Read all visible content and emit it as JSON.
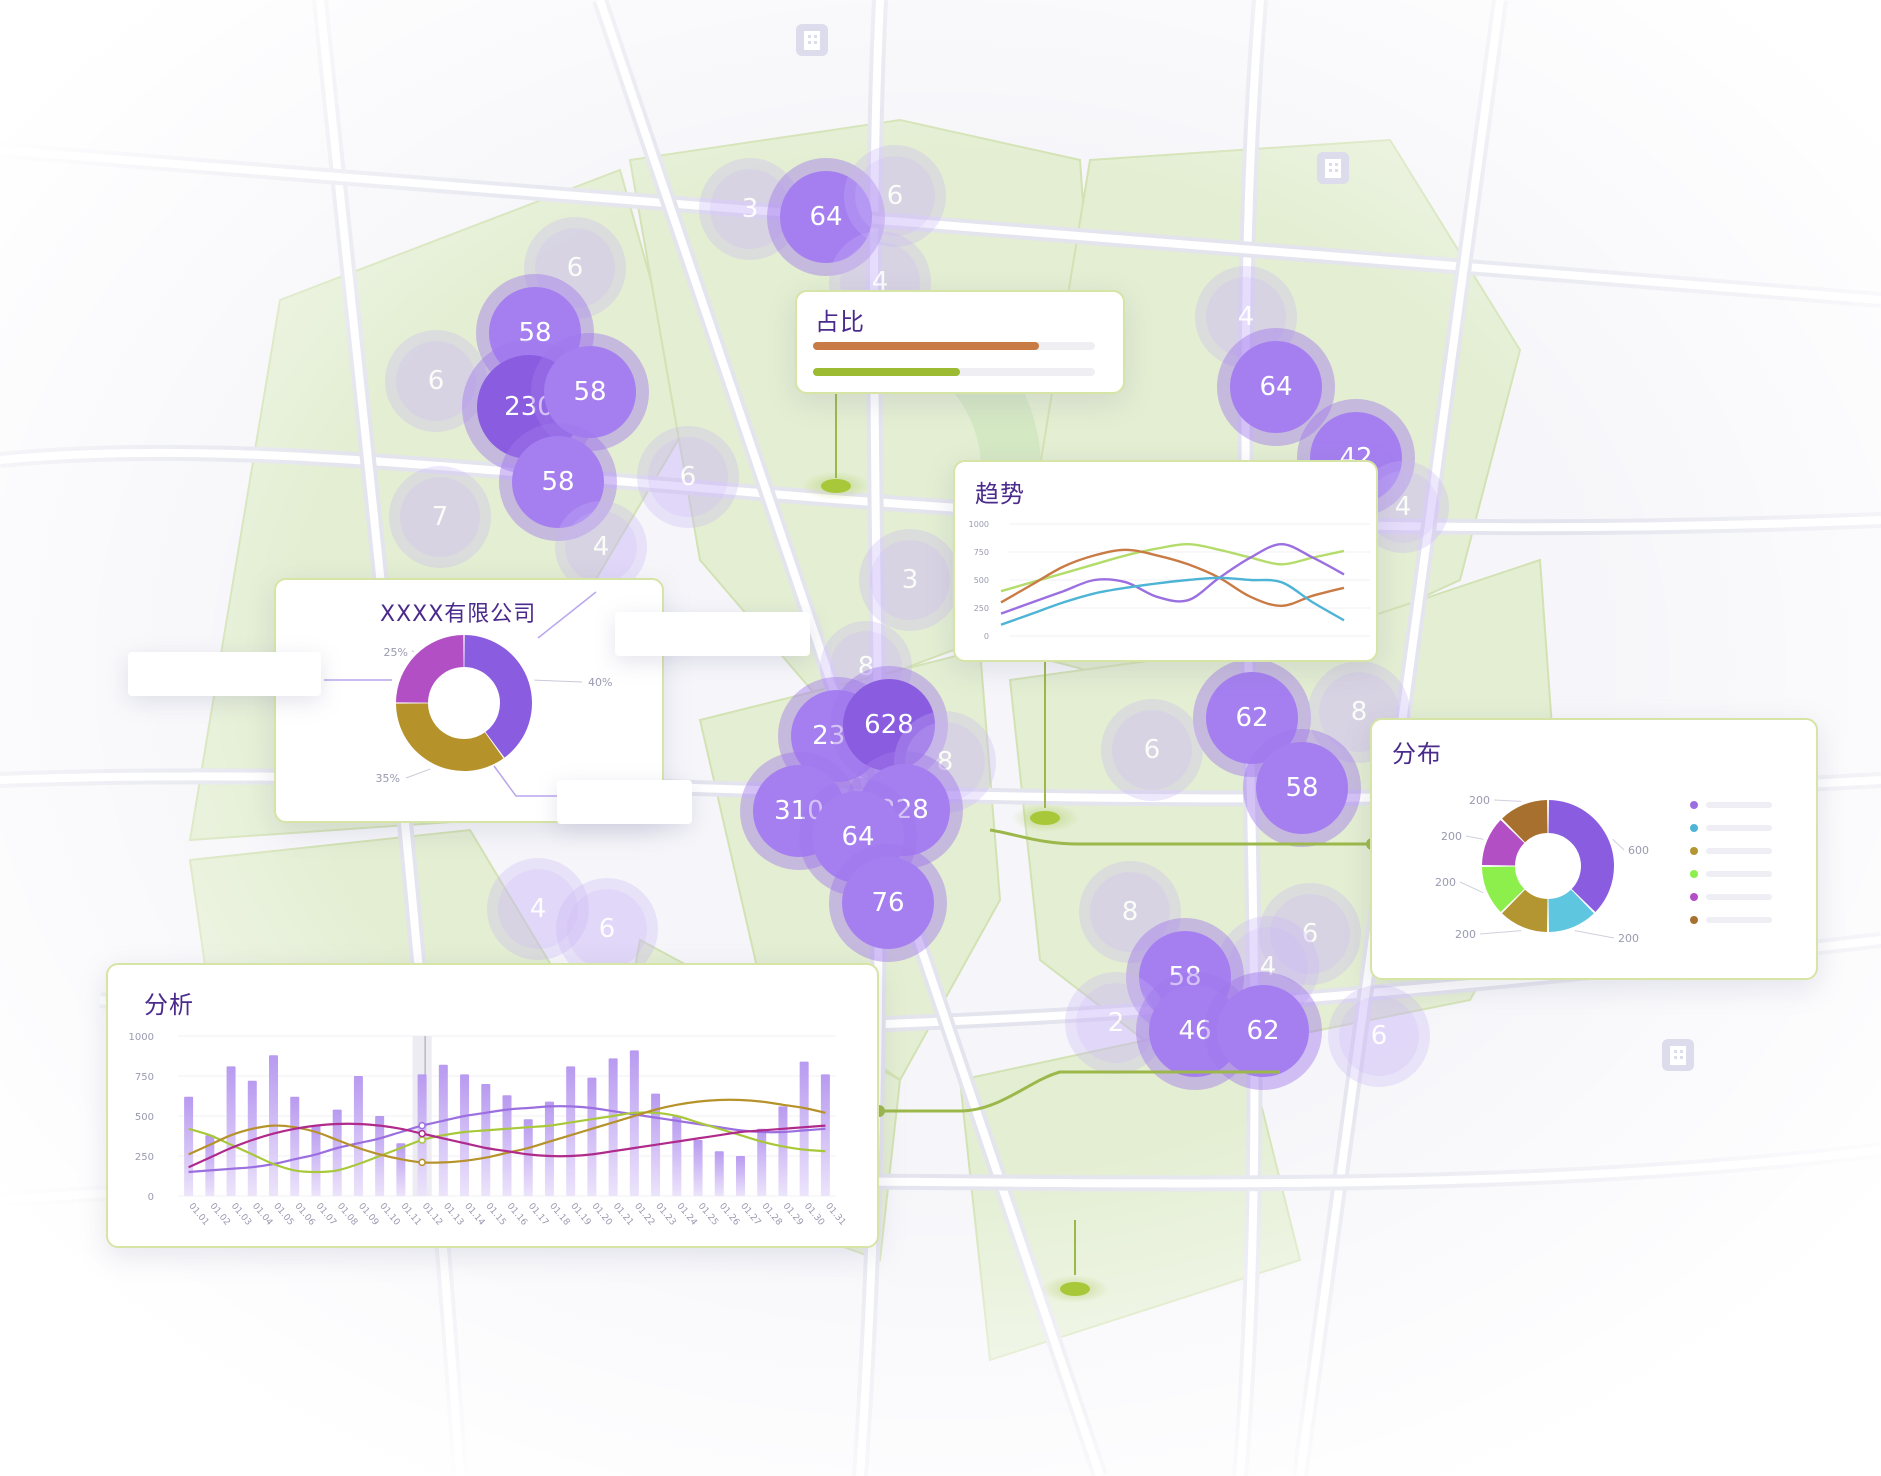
{
  "colors": {
    "accent": "#8a5ce0",
    "panel_border": "#d6e4a6",
    "title": "#4a2a8c",
    "map_green": "#e3eed2",
    "connector": "#9cb84a"
  },
  "map_icons": [
    "building-icon",
    "hotel-icon",
    "building-icon"
  ],
  "clusters": [
    {
      "value": "3",
      "tone": "faint"
    },
    {
      "value": "64",
      "tone": "strong"
    },
    {
      "value": "6",
      "tone": "faint"
    },
    {
      "value": "6",
      "tone": "faint"
    },
    {
      "value": "58",
      "tone": "strong"
    },
    {
      "value": "6",
      "tone": "faint"
    },
    {
      "value": "230",
      "tone": "dark"
    },
    {
      "value": "58",
      "tone": "strong"
    },
    {
      "value": "58",
      "tone": "strong"
    },
    {
      "value": "6",
      "tone": "faint"
    },
    {
      "value": "7",
      "tone": "faint"
    },
    {
      "value": "4",
      "tone": "faint"
    },
    {
      "value": "4",
      "tone": "faint"
    },
    {
      "value": "4",
      "tone": "faint"
    },
    {
      "value": "64",
      "tone": "strong"
    },
    {
      "value": "42",
      "tone": "strong"
    },
    {
      "value": "4",
      "tone": "faint"
    },
    {
      "value": "3",
      "tone": "faint"
    },
    {
      "value": "8",
      "tone": "faint"
    },
    {
      "value": "230",
      "tone": "strong"
    },
    {
      "value": "628",
      "tone": "dark"
    },
    {
      "value": "8",
      "tone": "faint"
    },
    {
      "value": "310",
      "tone": "strong"
    },
    {
      "value": "228",
      "tone": "strong"
    },
    {
      "value": "64",
      "tone": "strong"
    },
    {
      "value": "76",
      "tone": "strong"
    },
    {
      "value": "62",
      "tone": "strong"
    },
    {
      "value": "8",
      "tone": "faint"
    },
    {
      "value": "6",
      "tone": "faint"
    },
    {
      "value": "58",
      "tone": "strong"
    },
    {
      "value": "4",
      "tone": "faint"
    },
    {
      "value": "6",
      "tone": "faint"
    },
    {
      "value": "8",
      "tone": "faint"
    },
    {
      "value": "6",
      "tone": "faint"
    },
    {
      "value": "4",
      "tone": "faint"
    },
    {
      "value": "58",
      "tone": "strong"
    },
    {
      "value": "2",
      "tone": "faint"
    },
    {
      "value": "46",
      "tone": "strong"
    },
    {
      "value": "62",
      "tone": "strong"
    },
    {
      "value": "6",
      "tone": "faint"
    }
  ],
  "ratio_panel": {
    "title": "占比",
    "bars": [
      {
        "fraction": 0.8,
        "color": "#c97b46"
      },
      {
        "fraction": 0.52,
        "color": "#9cbb32"
      }
    ]
  },
  "trend_panel": {
    "title": "趋势",
    "chart_data": {
      "type": "line",
      "ylim": [
        0,
        1000
      ],
      "y_ticks": [
        "1000",
        "750",
        "500",
        "250",
        "0"
      ],
      "grid": true,
      "series": [
        {
          "color": "#b3dc6a",
          "values": [
            400,
            480,
            560,
            640,
            720,
            780,
            820,
            770,
            700,
            640,
            700,
            760
          ]
        },
        {
          "color": "#c97b46",
          "values": [
            300,
            460,
            620,
            720,
            770,
            720,
            640,
            520,
            350,
            270,
            360,
            430
          ]
        },
        {
          "color": "#9b6fe0",
          "values": [
            200,
            300,
            400,
            500,
            480,
            350,
            320,
            520,
            700,
            820,
            700,
            550
          ]
        },
        {
          "color": "#4eb4d6",
          "values": [
            100,
            200,
            300,
            380,
            430,
            470,
            500,
            520,
            500,
            480,
            300,
            140
          ]
        }
      ]
    }
  },
  "company_panel": {
    "title": "XXXX有限公司",
    "chart_data": {
      "type": "pie",
      "slices": [
        {
          "label": "40%",
          "value": 40,
          "color": "#8a5ce0"
        },
        {
          "label": "35%",
          "value": 35,
          "color": "#b6922a"
        },
        {
          "label": "25%",
          "value": 25,
          "color": "#b24fc4"
        }
      ]
    }
  },
  "dist_panel": {
    "title": "分布",
    "chart_data": {
      "type": "pie",
      "slices": [
        {
          "label": "600",
          "value": 600,
          "color": "#8a5ce0"
        },
        {
          "label": "200",
          "value": 200,
          "color": "#5ec6df"
        },
        {
          "label": "200",
          "value": 200,
          "color": "#b39531"
        },
        {
          "label": "200",
          "value": 200,
          "color": "#8cef4c"
        },
        {
          "label": "200",
          "value": 200,
          "color": "#b24fc4"
        },
        {
          "label": "200",
          "value": 200,
          "color": "#a8702e"
        }
      ],
      "legend_colors": [
        "#9b6fe0",
        "#4eb4d6",
        "#b39531",
        "#8cef4c",
        "#b24fc4",
        "#a8702e"
      ]
    }
  },
  "analysis_panel": {
    "title": "分析",
    "chart_data": {
      "type": "bar",
      "ylim": [
        0,
        1000
      ],
      "y_ticks": [
        "1000",
        "750",
        "500",
        "250",
        "0"
      ],
      "categories": [
        "01.01",
        "01.02",
        "01.03",
        "01.04",
        "01.05",
        "01.06",
        "01.07",
        "01.08",
        "01.09",
        "01.10",
        "01.11",
        "01.12",
        "01.13",
        "01.14",
        "01.15",
        "01.16",
        "01.17",
        "01.18",
        "01.19",
        "01.20",
        "01.21",
        "01.22",
        "01.23",
        "01.24",
        "01.25",
        "01.26",
        "01.27",
        "01.28",
        "01.29",
        "01.30",
        "01.31"
      ],
      "values": [
        620,
        380,
        810,
        720,
        880,
        620,
        440,
        540,
        750,
        500,
        330,
        760,
        820,
        760,
        700,
        630,
        480,
        590,
        810,
        740,
        860,
        910,
        640,
        500,
        350,
        280,
        250,
        420,
        560,
        840,
        760
      ],
      "highlight_index": 11,
      "series": [
        {
          "color": "#9b6fe0",
          "values": [
            150,
            160,
            170,
            180,
            200,
            230,
            260,
            300,
            330,
            360,
            400,
            440,
            470,
            500,
            520,
            540,
            550,
            560,
            560,
            550,
            530,
            510,
            490,
            470,
            450,
            430,
            410,
            400,
            400,
            410,
            420
          ]
        },
        {
          "color": "#a8c83a",
          "values": [
            420,
            380,
            320,
            260,
            200,
            160,
            150,
            160,
            200,
            250,
            300,
            350,
            380,
            400,
            410,
            420,
            430,
            440,
            460,
            480,
            500,
            520,
            520,
            500,
            460,
            420,
            380,
            340,
            310,
            290,
            280
          ]
        },
        {
          "color": "#b6922a",
          "values": [
            260,
            320,
            380,
            420,
            440,
            430,
            400,
            350,
            300,
            260,
            230,
            210,
            210,
            220,
            240,
            270,
            300,
            340,
            380,
            420,
            460,
            500,
            540,
            570,
            590,
            600,
            600,
            590,
            570,
            550,
            520
          ]
        },
        {
          "color": "#b02a8c",
          "values": [
            180,
            240,
            300,
            350,
            390,
            420,
            440,
            450,
            450,
            440,
            420,
            390,
            360,
            330,
            300,
            280,
            260,
            250,
            250,
            260,
            280,
            300,
            320,
            340,
            360,
            380,
            400,
            410,
            420,
            430,
            440
          ]
        }
      ]
    }
  }
}
